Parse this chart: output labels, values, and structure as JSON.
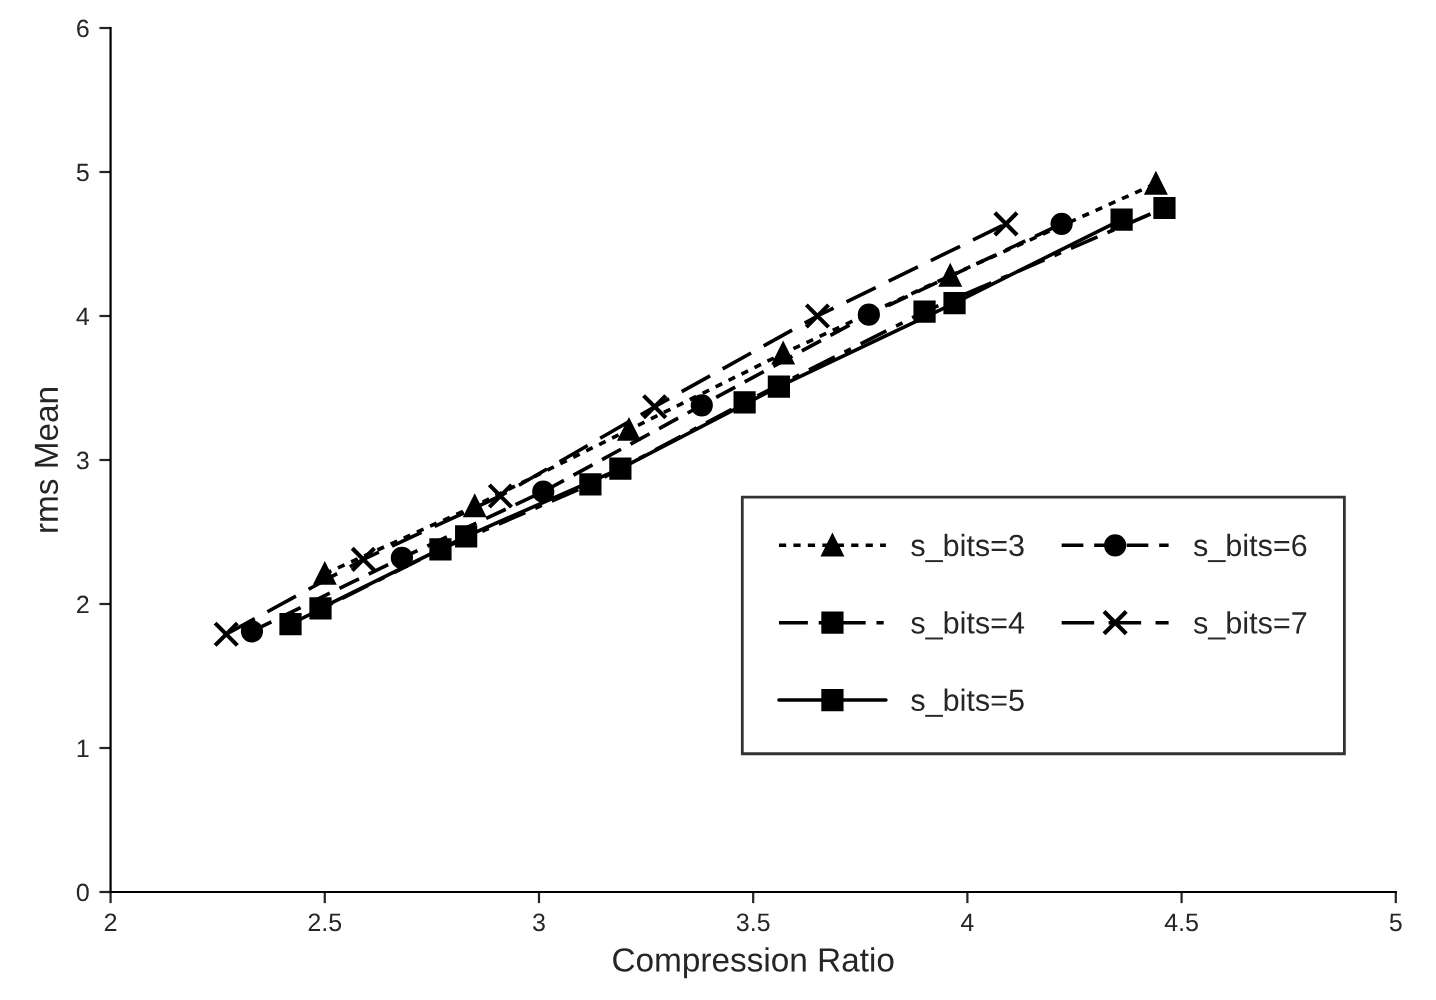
{
  "chart_data": {
    "type": "line",
    "xlabel": "Compression Ratio",
    "ylabel": "rms Mean",
    "xlim": [
      2,
      5
    ],
    "xticks": [
      2,
      2.5,
      3,
      3.5,
      4,
      4.5,
      5
    ],
    "ylim": [
      0,
      6
    ],
    "yticks": [
      0,
      1,
      2,
      3,
      4,
      5,
      6
    ],
    "grid": false,
    "legend": "bottom right",
    "series": [
      {
        "name": "s_bits=3",
        "color": "#000000",
        "marker": "triangle",
        "line_style": "dotted",
        "x": [
          2.5,
          2.85,
          3.21,
          3.57,
          3.96,
          4.44
        ],
        "values": [
          2.21,
          2.68,
          3.21,
          3.74,
          4.28,
          4.92
        ]
      },
      {
        "name": "s_bits=4",
        "color": "#000000",
        "marker": "square",
        "line_style": "dashed",
        "x": [
          2.42,
          2.77,
          3.12,
          3.48,
          3.9,
          4.46
        ],
        "values": [
          1.86,
          2.38,
          2.83,
          3.4,
          4.03,
          4.75
        ]
      },
      {
        "name": "s_bits=5",
        "color": "#000000",
        "marker": "square",
        "line_style": "solid",
        "x": [
          2.49,
          2.83,
          3.19,
          3.56,
          3.97,
          4.36
        ],
        "values": [
          1.97,
          2.47,
          2.94,
          3.51,
          4.09,
          4.67
        ]
      },
      {
        "name": "s_bits=6",
        "color": "#000000",
        "marker": "circle",
        "line_style": "dashed",
        "x": [
          2.33,
          2.68,
          3.01,
          3.38,
          3.77,
          4.22
        ],
        "values": [
          1.81,
          2.32,
          2.78,
          3.38,
          4.01,
          4.64
        ]
      },
      {
        "name": "s_bits=7",
        "color": "#000000",
        "marker": "cross",
        "line_style": "dashed",
        "x": [
          2.27,
          2.59,
          2.91,
          3.27,
          3.65,
          4.09
        ],
        "values": [
          1.79,
          2.31,
          2.75,
          3.37,
          4.0,
          4.64
        ]
      }
    ]
  }
}
